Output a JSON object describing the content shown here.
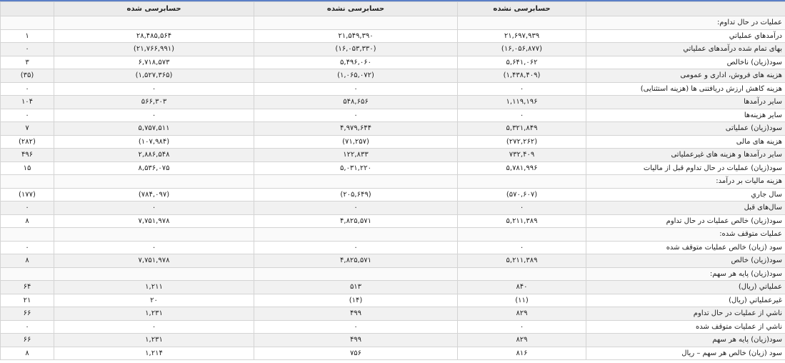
{
  "table": {
    "header": [
      "حسابرسی نشده",
      "حسابرسی نشده",
      "حسابرسی شده"
    ],
    "rows": [
      [
        "عملیات در حال تداوم:"
      ],
      [
        "درآمدهاي عملياتي",
        "۲۱,۶۹۷,۹۳۹",
        "۲۱,۵۴۹,۳۹۰",
        "۲۸,۴۸۵,۵۶۴",
        "۱"
      ],
      [
        "بهاى تمام شده درآمدهای عملياتي",
        "(۱۶,۰۵۶,۸۷۷)",
        "(۱۶,۰۵۳,۳۳۰)",
        "(۲۱,۷۶۶,۹۹۱)",
        "۰"
      ],
      [
        "سود(زيان) ناخالص",
        "۵,۶۴۱,۰۶۲",
        "۵,۴۹۶,۰۶۰",
        "۶,۷۱۸,۵۷۳",
        "۳"
      ],
      [
        "هزينه هاى فروش، ادارى و عمومى",
        "(۱,۴۳۸,۴۰۹)",
        "(۱,۰۶۵,۰۷۲)",
        "(۱,۵۲۷,۳۶۵)",
        "(۳۵)"
      ],
      [
        "هزینه کاهش ارزش دریافتنی ها (هزينه استثنایی)",
        "۰",
        "۰",
        "۰",
        "۰"
      ],
      [
        "ساير درآمدها",
        "۱,۱۱۹,۱۹۶",
        "۵۴۸,۶۵۶",
        "۵۶۶,۳۰۳",
        "۱۰۴"
      ],
      [
        "سایر هزینه‌ها",
        "۰",
        "۰",
        "۰",
        "۰"
      ],
      [
        "سود(زيان) عملياتى",
        "۵,۳۲۱,۸۴۹",
        "۴,۹۷۹,۶۴۴",
        "۵,۷۵۷,۵۱۱",
        "۷"
      ],
      [
        "هزينه هاى مالى",
        "(۲۷۲,۲۶۲)",
        "(۷۱,۲۵۷)",
        "(۱۰۷,۹۸۴)",
        "(۲۸۲)"
      ],
      [
        "ساير درآمدها و هزينه هاى غيرعملياتى",
        "۷۳۲,۴۰۹",
        "۱۲۲,۸۳۳",
        "۲,۸۸۶,۵۴۸",
        "۴۹۶"
      ],
      [
        "سود(زيان) عمليات در حال تداوم قبل از ماليات",
        "۵,۷۸۱,۹۹۶",
        "۵,۰۳۱,۲۲۰",
        "۸,۵۳۶,۰۷۵",
        "۱۵"
      ],
      [
        "هزينه ماليات بر درآمد:"
      ],
      [
        "سال جاري",
        "(۵۷۰,۶۰۷)",
        "(۲۰۵,۶۴۹)",
        "(۷۸۴,۰۹۷)",
        "(۱۷۷)"
      ],
      [
        "سال‌هاى قبل",
        "۰",
        "۰",
        "۰",
        "۰"
      ],
      [
        "سود(زيان) خالص عمليات در حال تداوم",
        "۵,۲۱۱,۳۸۹",
        "۴,۸۲۵,۵۷۱",
        "۷,۷۵۱,۹۷۸",
        "۸"
      ],
      [
        "عمليات متوقف شده:"
      ],
      [
        "سود (زيان) خالص عمليات متوقف شده",
        "۰",
        "۰",
        "۰",
        "۰"
      ],
      [
        "سود(زيان) خالص",
        "۵,۲۱۱,۳۸۹",
        "۴,۸۲۵,۵۷۱",
        "۷,۷۵۱,۹۷۸",
        "۸"
      ],
      [
        "سود(زيان) پايه هر سهم:"
      ],
      [
        "عملياتي (ريال)",
        "۸۴۰",
        "۵۱۳",
        "۱,۲۱۱",
        "۶۴"
      ],
      [
        "غيرعملياتي (ريال)",
        "(۱۱)",
        "(۱۴)",
        "۲۰",
        "۲۱"
      ],
      [
        "ناشي از عمليات در حال تداوم",
        "۸۲۹",
        "۴۹۹",
        "۱,۲۳۱",
        "۶۶"
      ],
      [
        "ناشي از عمليات متوقف شده",
        "۰",
        "۰",
        "۰",
        "۰"
      ],
      [
        "سود(زيان) پايه هر سهم",
        "۸۲۹",
        "۴۹۹",
        "۱,۲۳۱",
        "۶۶"
      ],
      [
        "سود (زيان) خالص هر سهم – ريال",
        "۸۱۶",
        "۷۵۶",
        "۱,۲۱۴",
        "۸"
      ]
    ]
  }
}
